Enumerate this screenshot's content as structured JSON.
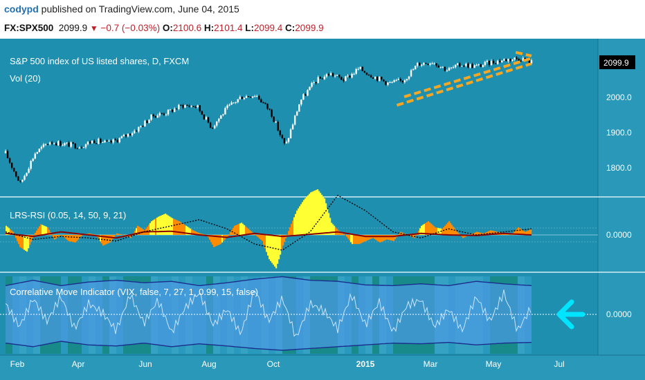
{
  "header": {
    "author": "codypd",
    "published": "published on TradingView.com, June 04, 2015",
    "symbol": "FX:SPX500",
    "last": "2099.9",
    "change": "−0.7 (−0.03%)",
    "open_label": "O:",
    "open": "2100.6",
    "high_label": "H:",
    "high": "2101.4",
    "low_label": "L:",
    "low": "2099.4",
    "close_label": "C:",
    "close": "2099.9"
  },
  "colors": {
    "background": "#1f8fb0",
    "candle_up": "#ffffff",
    "candle_down": "#000000",
    "trendline": "#f5a623",
    "lrs_fill": "#ff8c00",
    "lrs_highlight": "#ffff33",
    "lrs_line": "#8b0000",
    "lrs_signal": "#000000",
    "cmi_band": "#4a9ae0",
    "cmi_band_edge": "#1a2d8c",
    "cmi_line": "#c8e6ff",
    "cmi_arrow": "#00e5ff",
    "price_tag_bg": "#000000"
  },
  "chart_data": [
    {
      "type": "candlestick",
      "title": "S&P 500 index of US listed shares, D, FXCM",
      "subtitle": "Vol (20)",
      "x_tick_labels": [
        "Feb",
        "Apr",
        "Jun",
        "Aug",
        "Oct",
        "2015",
        "Mar",
        "May",
        "Jul"
      ],
      "y_tick_labels": [
        "2000.0",
        "1900.0",
        "1800.0"
      ],
      "y_ticks": [
        2000,
        1900,
        1800
      ],
      "ylim": [
        1720,
        2155
      ],
      "last_price_label": "2099.9",
      "last_price": 2099.9,
      "series": [
        {
          "name": "FX:SPX500",
          "x": [
            "2014-01-20",
            "2014-02-03",
            "2014-02-17",
            "2014-03-03",
            "2014-03-17",
            "2014-04-01",
            "2014-04-14",
            "2014-04-28",
            "2014-05-12",
            "2014-05-26",
            "2014-06-09",
            "2014-06-23",
            "2014-07-07",
            "2014-07-21",
            "2014-08-04",
            "2014-08-18",
            "2014-09-01",
            "2014-09-15",
            "2014-09-29",
            "2014-10-13",
            "2014-10-27",
            "2014-11-10",
            "2014-11-24",
            "2014-12-08",
            "2014-12-22",
            "2015-01-05",
            "2015-01-19",
            "2015-02-02",
            "2015-02-16",
            "2015-03-02",
            "2015-03-16",
            "2015-03-30",
            "2015-04-13",
            "2015-04-27",
            "2015-05-11",
            "2015-05-25",
            "2015-06-04"
          ],
          "close": [
            1842,
            1755,
            1842,
            1875,
            1868,
            1862,
            1878,
            1870,
            1888,
            1912,
            1948,
            1958,
            1978,
            1975,
            1915,
            1968,
            2002,
            2008,
            1960,
            1860,
            1990,
            2045,
            2068,
            2050,
            2082,
            2060,
            2040,
            2048,
            2095,
            2102,
            2078,
            2094,
            2088,
            2100,
            2108,
            2112,
            2099.9
          ]
        }
      ],
      "annotations": [
        {
          "type": "trendline",
          "style": "dashed",
          "from": [
            "2015-01-27",
            1978
          ],
          "to": [
            "2015-06-04",
            2096
          ]
        },
        {
          "type": "trendline",
          "style": "dashed",
          "from": [
            "2015-02-03",
            2002
          ],
          "to": [
            "2015-06-04",
            2111
          ]
        },
        {
          "type": "trendline",
          "style": "dashed",
          "from": [
            "2015-05-20",
            2128
          ],
          "to": [
            "2015-06-04",
            2118
          ]
        }
      ]
    },
    {
      "type": "area",
      "title": "LRS-RSI (0.05, 14, 50, 9, 21)",
      "y_tick_labels": [
        "0.0000"
      ],
      "zero_line": 0,
      "series": [
        {
          "name": "histogram",
          "x": [
            0,
            10,
            20,
            30,
            40,
            50,
            60,
            70,
            80,
            90,
            100,
            110,
            120,
            130,
            140,
            150,
            160,
            170,
            180,
            190,
            200,
            210,
            220,
            230,
            240,
            250,
            260,
            270,
            280,
            290,
            300,
            310,
            320,
            330,
            340,
            350,
            360,
            370,
            380,
            390,
            400,
            410,
            420,
            430,
            440,
            450,
            460,
            470,
            480,
            490,
            500,
            510,
            520,
            530,
            540,
            550,
            560,
            570,
            580,
            590,
            600,
            610,
            620,
            630,
            640,
            650,
            660,
            670,
            680,
            690,
            700,
            710,
            720,
            730,
            740,
            750,
            760
          ],
          "values": [
            0.3,
            0.1,
            -0.4,
            -0.55,
            0.0,
            0.35,
            0.25,
            -0.15,
            0.0,
            -0.2,
            -0.25,
            0.0,
            0.05,
            0.0,
            -0.35,
            -0.25,
            0.05,
            0.0,
            -0.1,
            0.3,
            0.15,
            0.45,
            0.6,
            0.7,
            0.55,
            0.45,
            0.3,
            0.15,
            0.05,
            0.0,
            -0.4,
            -0.3,
            -0.05,
            0.3,
            0.4,
            0.2,
            0.0,
            -0.2,
            -0.8,
            -1.1,
            -0.35,
            0.25,
            0.8,
            1.15,
            1.4,
            1.5,
            1.2,
            0.4,
            0.15,
            0.0,
            -0.3,
            -0.3,
            -0.2,
            -0.1,
            -0.25,
            -0.15,
            -0.2,
            0.1,
            0.0,
            -0.1,
            0.3,
            0.45,
            0.25,
            0.2,
            0.45,
            0.15,
            -0.1,
            0.0,
            0.1,
            0.05,
            0.15,
            0.1,
            0.05,
            0.0,
            0.25,
            0.1,
            0.2
          ]
        },
        {
          "name": "lrs",
          "x": [
            0,
            40,
            80,
            120,
            160,
            200,
            240,
            280,
            320,
            360,
            400,
            440,
            480,
            520,
            560,
            600,
            640,
            680,
            720,
            760
          ],
          "values": [
            0.05,
            -0.05,
            0.1,
            0.0,
            -0.1,
            0.1,
            0.12,
            0.0,
            -0.08,
            0.05,
            -0.05,
            0.02,
            0.1,
            -0.05,
            -0.05,
            0.05,
            0.0,
            -0.02,
            0.05,
            0.0
          ]
        },
        {
          "name": "signal",
          "x": [
            0,
            40,
            80,
            120,
            160,
            200,
            240,
            280,
            320,
            360,
            400,
            440,
            480,
            520,
            560,
            600,
            640,
            680,
            720,
            760
          ],
          "values": [
            0.1,
            -0.15,
            -0.05,
            -0.1,
            -0.2,
            0.1,
            0.3,
            0.5,
            0.2,
            -0.3,
            -0.5,
            0.1,
            1.3,
            0.8,
            0.1,
            -0.1,
            0.2,
            0.0,
            0.1,
            0.2
          ]
        }
      ]
    },
    {
      "type": "area",
      "title": "Correlative Move Indicator (VIX, false, 7, 27, 1, 0.99, 15, false)",
      "y_tick_labels": [
        "0.0000"
      ],
      "zero_line": 0,
      "series": [
        {
          "name": "upper_band",
          "x": [
            0,
            40,
            80,
            120,
            160,
            200,
            240,
            280,
            320,
            360,
            400,
            440,
            480,
            520,
            560,
            600,
            640,
            680,
            720,
            760
          ],
          "values": [
            0.8,
            0.95,
            0.8,
            0.9,
            0.95,
            0.88,
            0.92,
            0.8,
            0.88,
            0.98,
            1.05,
            0.95,
            0.92,
            0.82,
            0.8,
            0.85,
            0.8,
            0.92,
            0.85,
            0.8
          ]
        },
        {
          "name": "lower_band",
          "x": [
            0,
            40,
            80,
            120,
            160,
            200,
            240,
            280,
            320,
            360,
            400,
            440,
            480,
            520,
            560,
            600,
            640,
            680,
            720,
            760
          ],
          "values": [
            -0.8,
            -0.9,
            -0.75,
            -0.85,
            -0.88,
            -0.8,
            -0.9,
            -0.82,
            -0.88,
            -0.95,
            -1.0,
            -0.95,
            -0.9,
            -0.85,
            -0.8,
            -0.82,
            -0.78,
            -0.85,
            -0.8,
            -0.78
          ]
        },
        {
          "name": "cmi",
          "x": [
            0,
            20,
            40,
            60,
            80,
            100,
            120,
            140,
            160,
            180,
            200,
            220,
            240,
            260,
            280,
            300,
            320,
            340,
            360,
            380,
            400,
            420,
            440,
            460,
            480,
            500,
            520,
            540,
            560,
            580,
            600,
            620,
            640,
            660,
            680,
            700,
            720,
            740,
            760
          ],
          "values": [
            0.3,
            -0.35,
            0.45,
            -0.2,
            0.5,
            -0.4,
            0.3,
            0.05,
            -0.45,
            0.55,
            -0.25,
            0.4,
            -0.5,
            0.2,
            0.6,
            -0.3,
            0.15,
            -0.55,
            0.7,
            -0.2,
            0.45,
            -0.65,
            0.3,
            0.1,
            -0.4,
            0.55,
            -0.3,
            0.35,
            -0.5,
            0.25,
            0.4,
            -0.35,
            0.15,
            -0.45,
            0.5,
            -0.2,
            0.6,
            -0.45,
            0.2
          ]
        }
      ]
    }
  ]
}
